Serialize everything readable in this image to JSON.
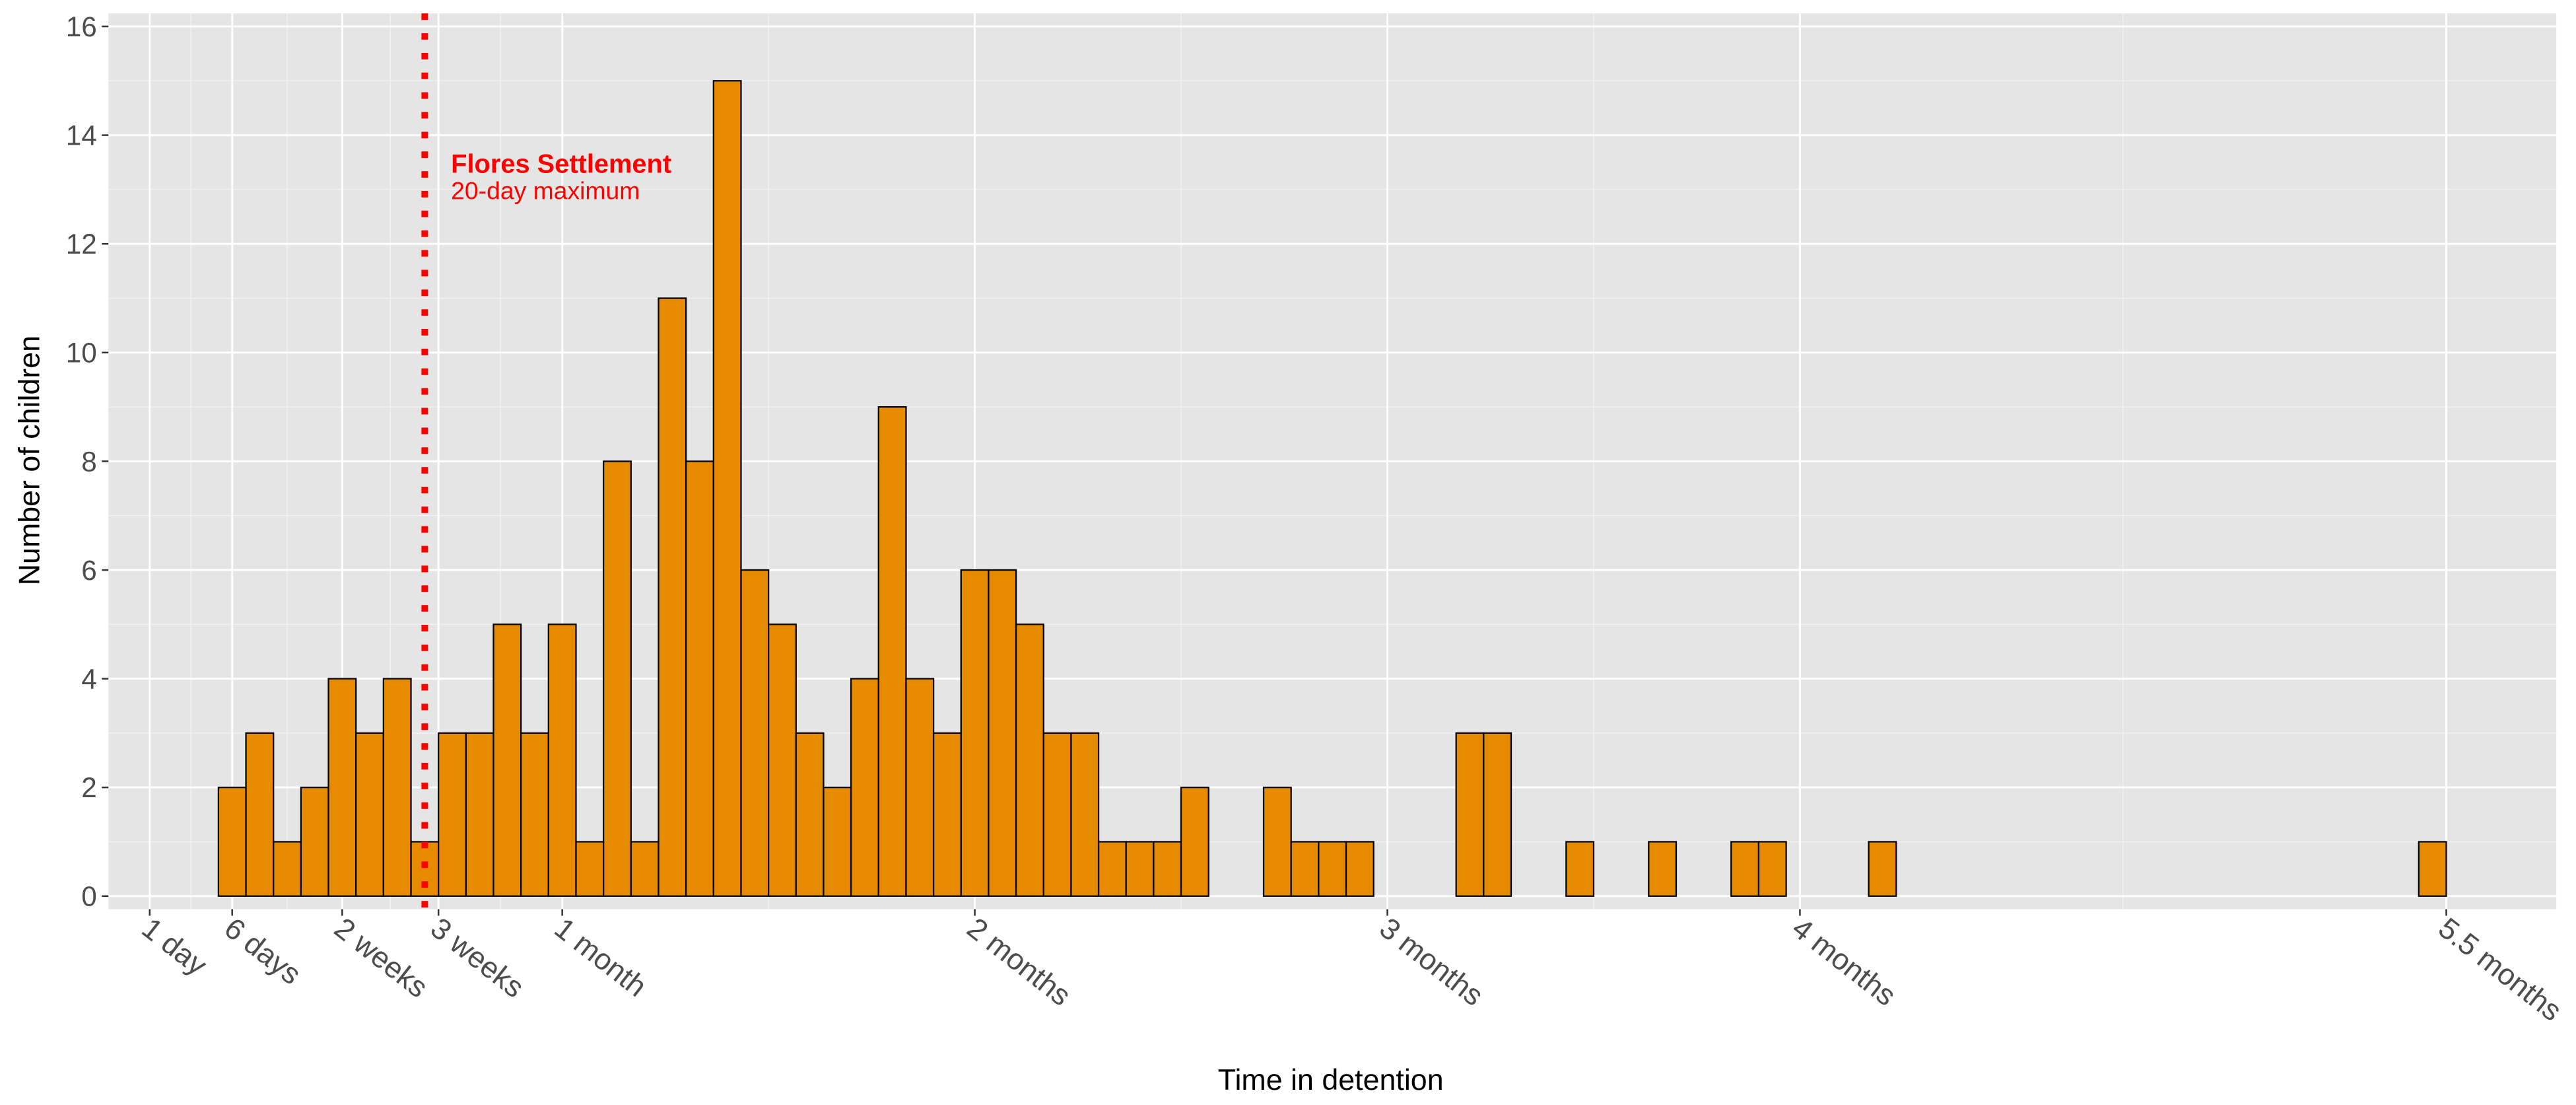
{
  "chart_data": {
    "type": "histogram",
    "x_label": "Time in detention",
    "y_label": "Number of children",
    "bins": [
      5,
      7,
      9,
      11,
      13,
      15,
      17,
      19,
      21,
      23,
      25,
      27,
      29,
      31,
      33,
      35,
      37,
      39,
      41,
      43,
      45,
      47,
      49,
      51,
      53,
      55,
      57,
      59,
      61,
      63,
      65,
      67,
      69,
      71,
      73,
      75,
      77,
      79,
      81,
      83,
      85,
      87,
      89,
      91,
      93,
      95,
      97,
      99,
      101,
      103,
      105,
      107,
      109,
      111,
      113,
      115,
      117,
      119,
      121,
      123,
      125,
      127,
      129,
      131,
      133,
      135,
      137,
      139,
      141,
      143,
      145,
      147,
      149,
      151,
      153,
      155,
      157,
      159,
      161,
      163,
      165,
      167
    ],
    "counts": [
      2,
      3,
      1,
      2,
      4,
      3,
      4,
      1,
      3,
      3,
      5,
      3,
      5,
      1,
      8,
      1,
      11,
      8,
      15,
      6,
      5,
      3,
      2,
      4,
      9,
      4,
      3,
      6,
      6,
      5,
      3,
      3,
      1,
      1,
      1,
      2,
      0,
      0,
      2,
      1,
      1,
      1,
      0,
      0,
      0,
      3,
      3,
      0,
      0,
      1,
      0,
      0,
      1,
      0,
      0,
      1,
      1,
      0,
      0,
      0,
      1,
      0,
      0,
      0,
      0,
      0,
      0,
      0,
      0,
      0,
      0,
      0,
      0,
      0,
      0,
      0,
      0,
      0,
      0,
      0,
      1
    ],
    "color": "#e68a00",
    "xlim": [
      -3,
      175
    ],
    "xticks": [
      {
        "value": 0,
        "label": "1 day"
      },
      {
        "value": 6,
        "label": "6 days"
      },
      {
        "value": 14,
        "label": "2 weeks"
      },
      {
        "value": 21,
        "label": "3 weeks"
      },
      {
        "value": 30,
        "label": "1 month"
      },
      {
        "value": 60,
        "label": "2 months"
      },
      {
        "value": 90,
        "label": "3 months"
      },
      {
        "value": 120,
        "label": "4 months"
      },
      {
        "value": 167,
        "label": "5.5 months"
      }
    ],
    "ylim": [
      -0.24,
      16.24
    ],
    "yticks": [
      0,
      2,
      4,
      6,
      8,
      10,
      12,
      14,
      16
    ],
    "grid": true,
    "reference_line": {
      "x": 20,
      "color": "#ff0000",
      "title": "Flores Settlement",
      "subtitle": "20-day maximum"
    }
  }
}
